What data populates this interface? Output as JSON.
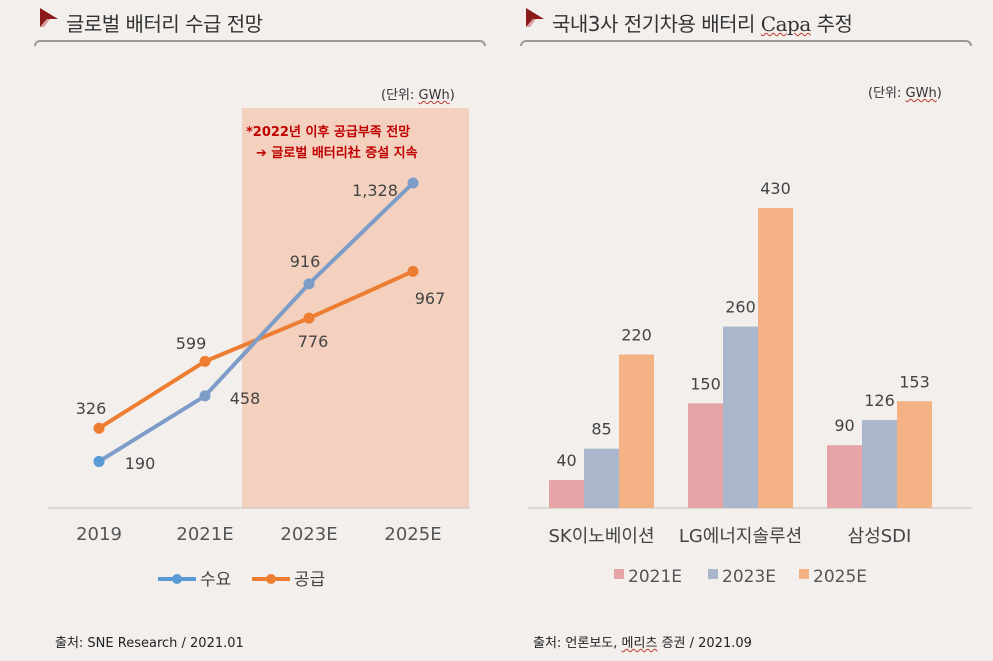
{
  "left": {
    "title": "글로벌 배터리 수급 전망",
    "unit_prefix": "(단위: ",
    "unit_word": "GWh",
    "unit_suffix": ")",
    "annotation_line1": "*2022년 이후 공급부족 전망",
    "annotation_line2": "➔ 글로벌 배터리社 증설 지속",
    "source": "출처: SNE Research / 2021.01"
  },
  "right": {
    "title_prefix": "국내3사 전기차용 배터리 ",
    "title_wavy": "Capa",
    "title_suffix": " 추정",
    "unit_prefix": "(단위: ",
    "unit_word": "GWh",
    "unit_suffix": ")",
    "source_prefix": "출처: 언론보도, ",
    "source_wavy": "메리츠",
    "source_suffix": " 증권 / 2021.09"
  },
  "colors": {
    "accent": "#8b1a1a",
    "demand": "#7e9cc8",
    "demand_start": "#5b9bd5",
    "supply": "#ed7d31",
    "shade": "#f2cbb5",
    "bar_2021E": "#e6a4a6",
    "bar_2023E": "#aab6cb",
    "bar_2025E": "#f4b183",
    "annotation": "#c00000"
  },
  "chart_data": [
    {
      "type": "line",
      "title": "글로벌 배터리 수급 전망",
      "categories": [
        "2019",
        "2021E",
        "2023E",
        "2025E"
      ],
      "series": [
        {
          "name": "수요",
          "values": [
            190,
            458,
            916,
            1328
          ],
          "labels": [
            "190",
            "458",
            "916",
            "1,328"
          ]
        },
        {
          "name": "공급",
          "values": [
            326,
            599,
            776,
            967
          ],
          "labels": [
            "326",
            "599",
            "776",
            "967"
          ]
        }
      ],
      "ylim": [
        0,
        1400
      ],
      "highlight_categories": [
        "2023E",
        "2025E"
      ],
      "legend": "bottom",
      "grid": false
    },
    {
      "type": "bar",
      "title": "국내3사 전기차용 배터리 Capa 추정",
      "categories": [
        "SK이노베이션",
        "LG에너지솔루션",
        "삼성SDI"
      ],
      "series": [
        {
          "name": "2021E",
          "values": [
            40,
            150,
            90
          ]
        },
        {
          "name": "2023E",
          "values": [
            85,
            260,
            126
          ]
        },
        {
          "name": "2025E",
          "values": [
            220,
            430,
            153
          ]
        }
      ],
      "ylim": [
        0,
        480
      ],
      "legend": "bottom",
      "grid": false
    }
  ]
}
